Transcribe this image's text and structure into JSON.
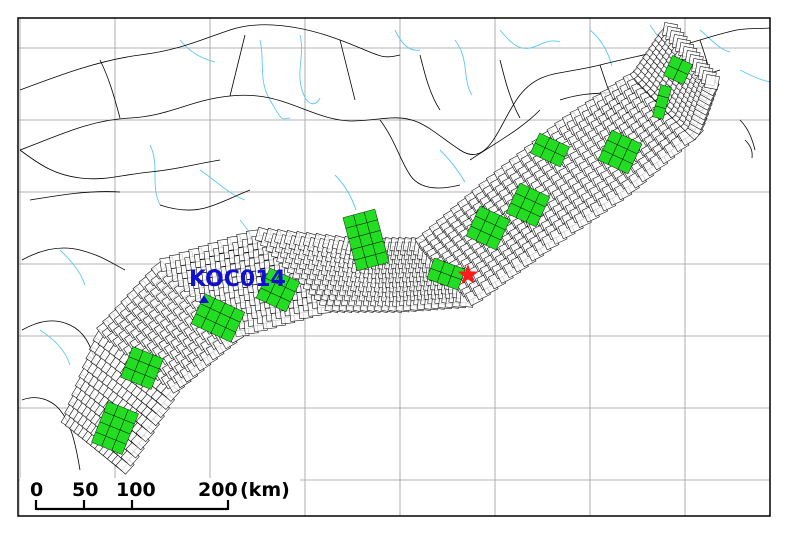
{
  "station": {
    "code": "KOC014",
    "color": "#1010d0"
  },
  "epicenter": {
    "symbol": "star",
    "color": "#ff1a1a"
  },
  "subfault_color": "#000000",
  "asperity_color": "#22dd22",
  "coast_color": "#000000",
  "river_color": "#5bc8f0",
  "grid_color": "#9a9a9a",
  "scale_bar": {
    "ticks": [
      "0",
      "50",
      "100",
      "200"
    ],
    "unit": "(km)"
  }
}
